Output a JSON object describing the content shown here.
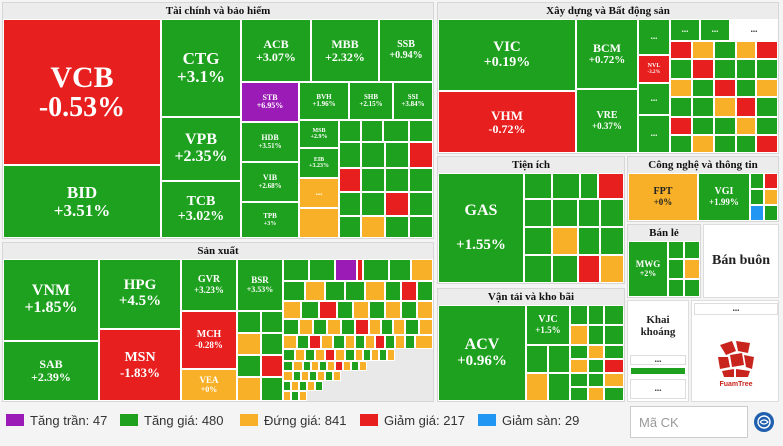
{
  "sectors": {
    "finance": "Tài chính và bảo hiểm",
    "real_estate": "Xây dựng và Bất động sản",
    "utilities": "Tiện ích",
    "tech": "Công nghệ và thông tin",
    "manufacturing": "Sản xuất",
    "retail": "Bán lẻ",
    "wholesale": "Bán buôn",
    "transport": "Vận tải và kho bãi",
    "mining": "Khai khoáng"
  },
  "tiles": {
    "vcb": {
      "code": "VCB",
      "change": "-0.53%"
    },
    "bid": {
      "code": "BID",
      "change": "+3.51%"
    },
    "ctg": {
      "code": "CTG",
      "change": "+3.1%"
    },
    "vpb": {
      "code": "VPB",
      "change": "+2.35%"
    },
    "tcb": {
      "code": "TCB",
      "change": "+3.02%"
    },
    "acb": {
      "code": "ACB",
      "change": "+3.07%"
    },
    "mbb": {
      "code": "MBB",
      "change": "+2.32%"
    },
    "ssb": {
      "code": "SSB",
      "change": "+0.94%"
    },
    "stb": {
      "code": "STB",
      "change": "+6.95%"
    },
    "bvh": {
      "code": "BVH",
      "change": "+1.96%"
    },
    "shb": {
      "code": "SHB",
      "change": "+2.15%"
    },
    "ssi": {
      "code": "SSI",
      "change": "+3.84%"
    },
    "hdb": {
      "code": "HDB",
      "change": "+3.51%"
    },
    "msb": {
      "code": "MSB",
      "change": "+2.9%"
    },
    "vib": {
      "code": "VIB",
      "change": "+2.68%"
    },
    "eib": {
      "code": "EIB",
      "change": "+3.23%"
    },
    "tpb": {
      "code": "TPB",
      "change": "+3%"
    },
    "vic": {
      "code": "VIC",
      "change": "+0.19%"
    },
    "vhm": {
      "code": "VHM",
      "change": "-0.72%"
    },
    "bcm": {
      "code": "BCM",
      "change": "+0.72%"
    },
    "vre": {
      "code": "VRE",
      "change": "+0.37%"
    },
    "nvl": {
      "code": "NVL",
      "change": "-3.2%"
    },
    "gas": {
      "code": "GAS",
      "change": "+1.55%"
    },
    "fpt": {
      "code": "FPT",
      "change": "+0%"
    },
    "vgi": {
      "code": "VGI",
      "change": "+1.99%"
    },
    "mwg": {
      "code": "MWG",
      "change": "+2%"
    },
    "vnm": {
      "code": "VNM",
      "change": "+1.85%"
    },
    "hpg": {
      "code": "HPG",
      "change": "+4.5%"
    },
    "gvr": {
      "code": "GVR",
      "change": "+3.23%"
    },
    "bsr": {
      "code": "BSR",
      "change": "+3.53%"
    },
    "sab": {
      "code": "SAB",
      "change": "+2.39%"
    },
    "msn": {
      "code": "MSN",
      "change": "-1.83%"
    },
    "mch": {
      "code": "MCH",
      "change": "-0.28%"
    },
    "vea": {
      "code": "VEA",
      "change": "+0%"
    },
    "acv": {
      "code": "ACV",
      "change": "+0.96%"
    },
    "vjc": {
      "code": "VJC",
      "change": "+1.5%"
    }
  },
  "ellipsis": "...",
  "legend": [
    {
      "label": "Tăng trần: 47",
      "color": "#9b1bb6"
    },
    {
      "label": "Tăng giá: 480",
      "color": "#1ea11e"
    },
    {
      "label": "Đứng giá: 841",
      "color": "#f7b027"
    },
    {
      "label": "Giảm giá: 217",
      "color": "#e81f1f"
    },
    {
      "label": "Giảm sàn: 29",
      "color": "#2196f3"
    }
  ],
  "search": {
    "placeholder": "Mã CK"
  },
  "logo": {
    "text": "FuamTree"
  }
}
